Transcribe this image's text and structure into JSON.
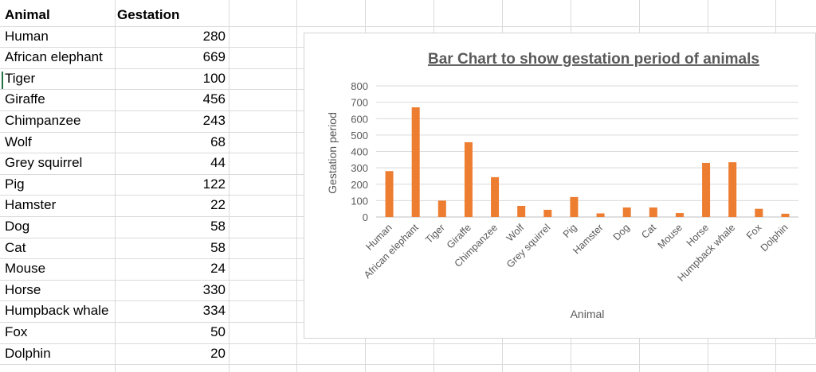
{
  "table": {
    "headers": [
      "Animal",
      "Gestation"
    ],
    "rows": [
      [
        "Human",
        "280"
      ],
      [
        "African elephant",
        "669"
      ],
      [
        "Tiger",
        "100"
      ],
      [
        "Giraffe",
        "456"
      ],
      [
        "Chimpanzee",
        "243"
      ],
      [
        "Wolf",
        "68"
      ],
      [
        "Grey squirrel",
        "44"
      ],
      [
        "Pig",
        "122"
      ],
      [
        "Hamster",
        "22"
      ],
      [
        "Dog",
        "58"
      ],
      [
        "Cat",
        "58"
      ],
      [
        "Mouse",
        "24"
      ],
      [
        "Horse",
        "330"
      ],
      [
        "Humpback whale",
        "334"
      ],
      [
        "Fox",
        "50"
      ],
      [
        "Dolphin",
        "20"
      ]
    ]
  },
  "chart_data": {
    "type": "bar",
    "title": "Bar Chart to show gestation period of animals",
    "xlabel": "Animal",
    "ylabel": "Gestation period",
    "categories": [
      "Human",
      "African elephant",
      "Tiger",
      "Giraffe",
      "Chimpanzee",
      "Wolf",
      "Grey squirrel",
      "Pig",
      "Hamster",
      "Dog",
      "Cat",
      "Mouse",
      "Horse",
      "Humpback whale",
      "Fox",
      "Dolphin"
    ],
    "values": [
      280,
      669,
      100,
      456,
      243,
      68,
      44,
      122,
      22,
      58,
      58,
      24,
      330,
      334,
      50,
      20
    ],
    "ylim": [
      0,
      800
    ],
    "yticks": [
      0,
      100,
      200,
      300,
      400,
      500,
      600,
      700,
      800
    ],
    "grid": true,
    "bar_color": "#ED7D31",
    "title_color": "#595959"
  }
}
